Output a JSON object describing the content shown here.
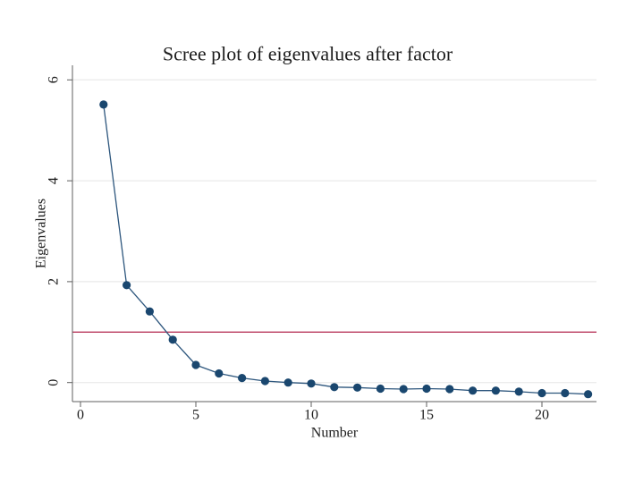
{
  "chart_data": {
    "type": "line",
    "title": "Scree plot of eigenvalues after factor",
    "xlabel": "Number",
    "ylabel": "Eigenvalues",
    "x": [
      1,
      2,
      3,
      4,
      5,
      6,
      7,
      8,
      9,
      10,
      11,
      12,
      13,
      14,
      15,
      16,
      17,
      18,
      19,
      20,
      21,
      22
    ],
    "y": [
      5.51,
      1.93,
      1.41,
      0.85,
      0.35,
      0.18,
      0.09,
      0.03,
      0.0,
      -0.02,
      -0.09,
      -0.1,
      -0.12,
      -0.13,
      -0.12,
      -0.13,
      -0.16,
      -0.16,
      -0.18,
      -0.21,
      -0.21,
      -0.23
    ],
    "x_ticks": [
      0,
      5,
      10,
      15,
      20
    ],
    "y_ticks": [
      0,
      2,
      4,
      6
    ],
    "xlim": [
      -0.35,
      22.4
    ],
    "ylim": [
      -0.38,
      6.29
    ],
    "grid": true,
    "legend": "none",
    "reference_line": {
      "y": 1
    },
    "colors": {
      "marker": "#1a476f",
      "series_line": "#2d567d",
      "reference": "#b9395c",
      "grid": "#e5e5e5",
      "axis": "#5f5f5f",
      "text": "#1c1c1c",
      "background": "#ffffff"
    }
  }
}
